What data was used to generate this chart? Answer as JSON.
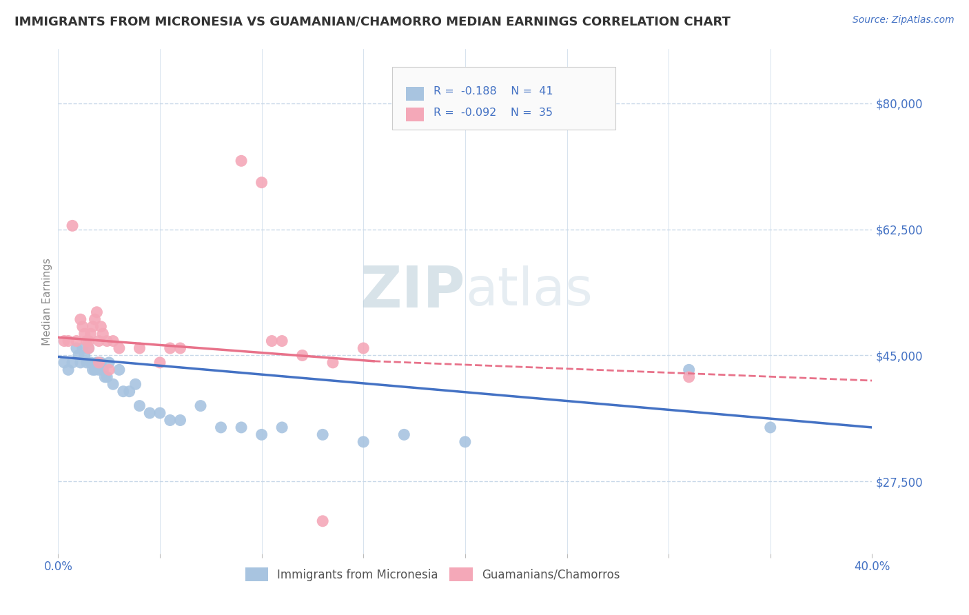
{
  "title": "IMMIGRANTS FROM MICRONESIA VS GUAMANIAN/CHAMORRO MEDIAN EARNINGS CORRELATION CHART",
  "source": "Source: ZipAtlas.com",
  "ylabel": "Median Earnings",
  "xlim": [
    0.0,
    0.4
  ],
  "ylim": [
    17500,
    87500
  ],
  "yticks": [
    27500,
    45000,
    62500,
    80000
  ],
  "ytick_labels": [
    "$27,500",
    "$45,000",
    "$62,500",
    "$80,000"
  ],
  "xticks": [
    0.0,
    0.05,
    0.1,
    0.15,
    0.2,
    0.25,
    0.3,
    0.35,
    0.4
  ],
  "xtick_labels": [
    "0.0%",
    "",
    "",
    "",
    "",
    "",
    "",
    "",
    "40.0%"
  ],
  "blue_color": "#a8c4e0",
  "pink_color": "#f4a8b8",
  "line_blue": "#4472c4",
  "line_pink": "#e8728a",
  "text_blue": "#4472c4",
  "background_color": "#ffffff",
  "grid_color": "#c8d8e8",
  "blue_scatter_x": [
    0.003,
    0.005,
    0.007,
    0.009,
    0.01,
    0.011,
    0.012,
    0.013,
    0.014,
    0.015,
    0.016,
    0.017,
    0.018,
    0.019,
    0.02,
    0.021,
    0.022,
    0.023,
    0.024,
    0.025,
    0.027,
    0.03,
    0.032,
    0.035,
    0.038,
    0.04,
    0.045,
    0.05,
    0.055,
    0.06,
    0.07,
    0.08,
    0.09,
    0.1,
    0.11,
    0.13,
    0.15,
    0.17,
    0.2,
    0.31,
    0.35
  ],
  "blue_scatter_y": [
    44000,
    43000,
    44000,
    46000,
    45000,
    44000,
    46000,
    45000,
    44000,
    46000,
    44000,
    43000,
    43000,
    44000,
    43000,
    44000,
    43000,
    42000,
    42000,
    44000,
    41000,
    43000,
    40000,
    40000,
    41000,
    38000,
    37000,
    37000,
    36000,
    36000,
    38000,
    35000,
    35000,
    34000,
    35000,
    34000,
    33000,
    34000,
    33000,
    43000,
    35000
  ],
  "pink_scatter_x": [
    0.003,
    0.005,
    0.007,
    0.009,
    0.011,
    0.012,
    0.013,
    0.014,
    0.015,
    0.016,
    0.017,
    0.018,
    0.019,
    0.02,
    0.021,
    0.022,
    0.024,
    0.027,
    0.03,
    0.04,
    0.05,
    0.055,
    0.06,
    0.09,
    0.1,
    0.105,
    0.11,
    0.12,
    0.135,
    0.15,
    0.015,
    0.02,
    0.025,
    0.31,
    0.13
  ],
  "pink_scatter_y": [
    47000,
    47000,
    63000,
    47000,
    50000,
    49000,
    48000,
    47000,
    47000,
    48000,
    49000,
    50000,
    51000,
    47000,
    49000,
    48000,
    47000,
    47000,
    46000,
    46000,
    44000,
    46000,
    46000,
    72000,
    69000,
    47000,
    47000,
    45000,
    44000,
    46000,
    46000,
    44000,
    43000,
    42000,
    22000
  ],
  "blue_line_x0": 0.0,
  "blue_line_x1": 0.4,
  "blue_line_y0": 44800,
  "blue_line_y1": 35000,
  "pink_line_solid_x0": 0.0,
  "pink_line_solid_x1": 0.155,
  "pink_line_y0": 47500,
  "pink_line_y1": 44200,
  "pink_line_dash_x0": 0.155,
  "pink_line_dash_x1": 0.4,
  "pink_line_dash_y0": 44200,
  "pink_line_dash_y1": 41500
}
